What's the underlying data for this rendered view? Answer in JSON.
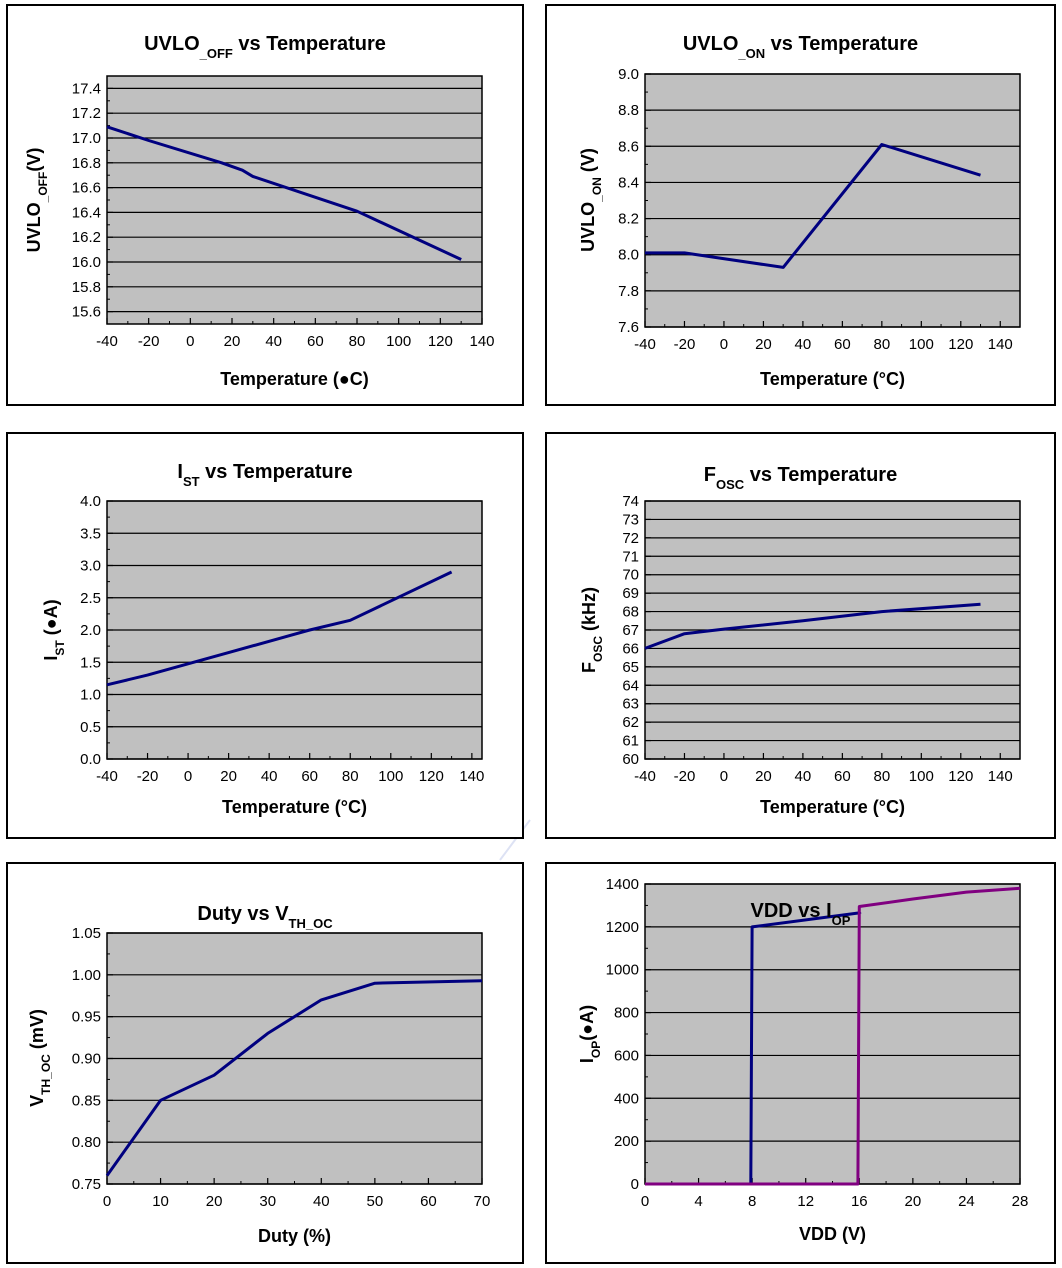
{
  "chart_data": [
    {
      "type": "line",
      "title": "UVLO",
      "title_sub": "_OFF",
      "title_suffix": " vs Temperature",
      "xlabel": "Temperature (●C)",
      "ylabel": "UVLO",
      "ylabel_sub": "_OFF",
      "ylabel_suffix": "(V)",
      "xlim": [
        -40,
        140
      ],
      "ylim": [
        15.5,
        17.5
      ],
      "x_ticks": [
        -40,
        -20,
        0,
        20,
        40,
        60,
        80,
        100,
        120,
        140
      ],
      "y_ticks": [
        15.6,
        15.8,
        16.0,
        16.2,
        16.4,
        16.6,
        16.8,
        17.0,
        17.2,
        17.4
      ],
      "y_tick_labels": [
        "15.6",
        "15.8",
        "16.0",
        "16.2",
        "16.4",
        "16.6",
        "16.8",
        "17.0",
        "17.2",
        "17.4"
      ],
      "grid": true,
      "series": [
        {
          "color": "#00007f",
          "x": [
            -40,
            -20,
            15,
            25,
            30,
            80,
            130
          ],
          "y": [
            17.09,
            16.98,
            16.8,
            16.74,
            16.69,
            16.41,
            16.02
          ]
        }
      ]
    },
    {
      "type": "line",
      "title": "UVLO",
      "title_sub": "_ON",
      "title_suffix": " vs Temperature",
      "xlabel": "Temperature (°C)",
      "ylabel": "UVLO",
      "ylabel_sub": "_ON",
      "ylabel_suffix": " (V)",
      "xlim": [
        -40,
        150
      ],
      "ylim": [
        7.6,
        9.0
      ],
      "x_ticks": [
        -40,
        -20,
        0,
        20,
        40,
        60,
        80,
        100,
        120,
        140
      ],
      "y_ticks": [
        7.6,
        7.8,
        8.0,
        8.2,
        8.4,
        8.6,
        8.8,
        9.0
      ],
      "y_tick_labels": [
        "7.6",
        "7.8",
        "8.0",
        "8.2",
        "8.4",
        "8.6",
        "8.8",
        "9.0"
      ],
      "grid": true,
      "series": [
        {
          "color": "#00007f",
          "x": [
            -40,
            -20,
            30,
            80,
            130
          ],
          "y": [
            8.01,
            8.01,
            7.93,
            8.61,
            8.44
          ]
        }
      ]
    },
    {
      "type": "line",
      "title": "I",
      "title_sub": "ST",
      "title_suffix": " vs Temperature",
      "xlabel": "Temperature (°C)",
      "ylabel": "I",
      "ylabel_sub": "ST",
      "ylabel_suffix": " (●A)",
      "xlim": [
        -40,
        145
      ],
      "ylim": [
        0.0,
        4.0
      ],
      "x_ticks": [
        -40,
        -20,
        0,
        20,
        40,
        60,
        80,
        100,
        120,
        140
      ],
      "y_ticks": [
        0.0,
        0.5,
        1.0,
        1.5,
        2.0,
        2.5,
        3.0,
        3.5,
        4.0
      ],
      "y_tick_labels": [
        "0.0",
        "0.5",
        "1.0",
        "1.5",
        "2.0",
        "2.5",
        "3.0",
        "3.5",
        "4.0"
      ],
      "grid": true,
      "series": [
        {
          "color": "#00007f",
          "x": [
            -40,
            -20,
            20,
            60,
            80,
            130
          ],
          "y": [
            1.15,
            1.3,
            1.65,
            2.0,
            2.15,
            2.9
          ]
        }
      ]
    },
    {
      "type": "line",
      "title": "F",
      "title_sub": "OSC",
      "title_suffix": " vs Temperature",
      "xlabel": "Temperature (°C)",
      "ylabel": "F",
      "ylabel_sub": "OSC",
      "ylabel_suffix": " (kHz)",
      "xlim": [
        -40,
        150
      ],
      "ylim": [
        60,
        74
      ],
      "x_ticks": [
        -40,
        -20,
        0,
        20,
        40,
        60,
        80,
        100,
        120,
        140
      ],
      "y_ticks": [
        60,
        61,
        62,
        63,
        64,
        65,
        66,
        67,
        68,
        69,
        70,
        71,
        72,
        73,
        74
      ],
      "y_tick_labels": [
        "60",
        "61",
        "62",
        "63",
        "64",
        "65",
        "66",
        "67",
        "68",
        "69",
        "70",
        "71",
        "72",
        "73",
        "74"
      ],
      "grid": true,
      "series": [
        {
          "color": "#00007f",
          "x": [
            -40,
            -20,
            0,
            40,
            80,
            130
          ],
          "y": [
            66.0,
            66.8,
            67.05,
            67.5,
            68.0,
            68.4
          ]
        }
      ]
    },
    {
      "type": "line",
      "title": "Duty  vs V",
      "title_sub": "TH_OC",
      "title_suffix": "",
      "xlabel": "Duty (%)",
      "ylabel": "V",
      "ylabel_sub": "TH_OC",
      "ylabel_suffix": " (mV)",
      "xlim": [
        0,
        70
      ],
      "ylim": [
        0.75,
        1.05
      ],
      "x_ticks": [
        0,
        10,
        20,
        30,
        40,
        50,
        60,
        70
      ],
      "y_ticks": [
        0.75,
        0.8,
        0.85,
        0.9,
        0.95,
        1.0,
        1.05
      ],
      "y_tick_labels": [
        "0.75",
        "0.80",
        "0.85",
        "0.90",
        "0.95",
        "1.00",
        "1.05"
      ],
      "grid": true,
      "series": [
        {
          "color": "#00007f",
          "x": [
            0,
            10,
            20,
            30,
            40,
            50,
            70
          ],
          "y": [
            0.76,
            0.85,
            0.88,
            0.93,
            0.97,
            0.99,
            0.993
          ]
        }
      ]
    },
    {
      "type": "line",
      "title": "VDD vs I",
      "title_sub": "OP",
      "title_suffix": "",
      "xlabel": "VDD (V)",
      "ylabel": "I",
      "ylabel_sub": "OP",
      "ylabel_suffix": "(●A)",
      "xlim": [
        0,
        28
      ],
      "ylim": [
        0,
        1400
      ],
      "x_ticks": [
        0,
        4,
        8,
        12,
        16,
        20,
        24,
        28
      ],
      "y_ticks": [
        0,
        200,
        400,
        600,
        800,
        1000,
        1200,
        1400
      ],
      "y_tick_labels": [
        "0",
        "200",
        "400",
        "600",
        "800",
        "1000",
        "1200",
        "1400"
      ],
      "grid": true,
      "series": [
        {
          "color": "#00007f",
          "x": [
            0,
            7.9,
            8.0,
            16.0,
            16.1
          ],
          "y": [
            0,
            0,
            1200,
            1265,
            1270
          ]
        },
        {
          "color": "#800080",
          "x": [
            0,
            15.9,
            16.0,
            20,
            24,
            28
          ],
          "y": [
            0,
            0,
            1295,
            1330,
            1362,
            1380
          ]
        }
      ]
    }
  ]
}
